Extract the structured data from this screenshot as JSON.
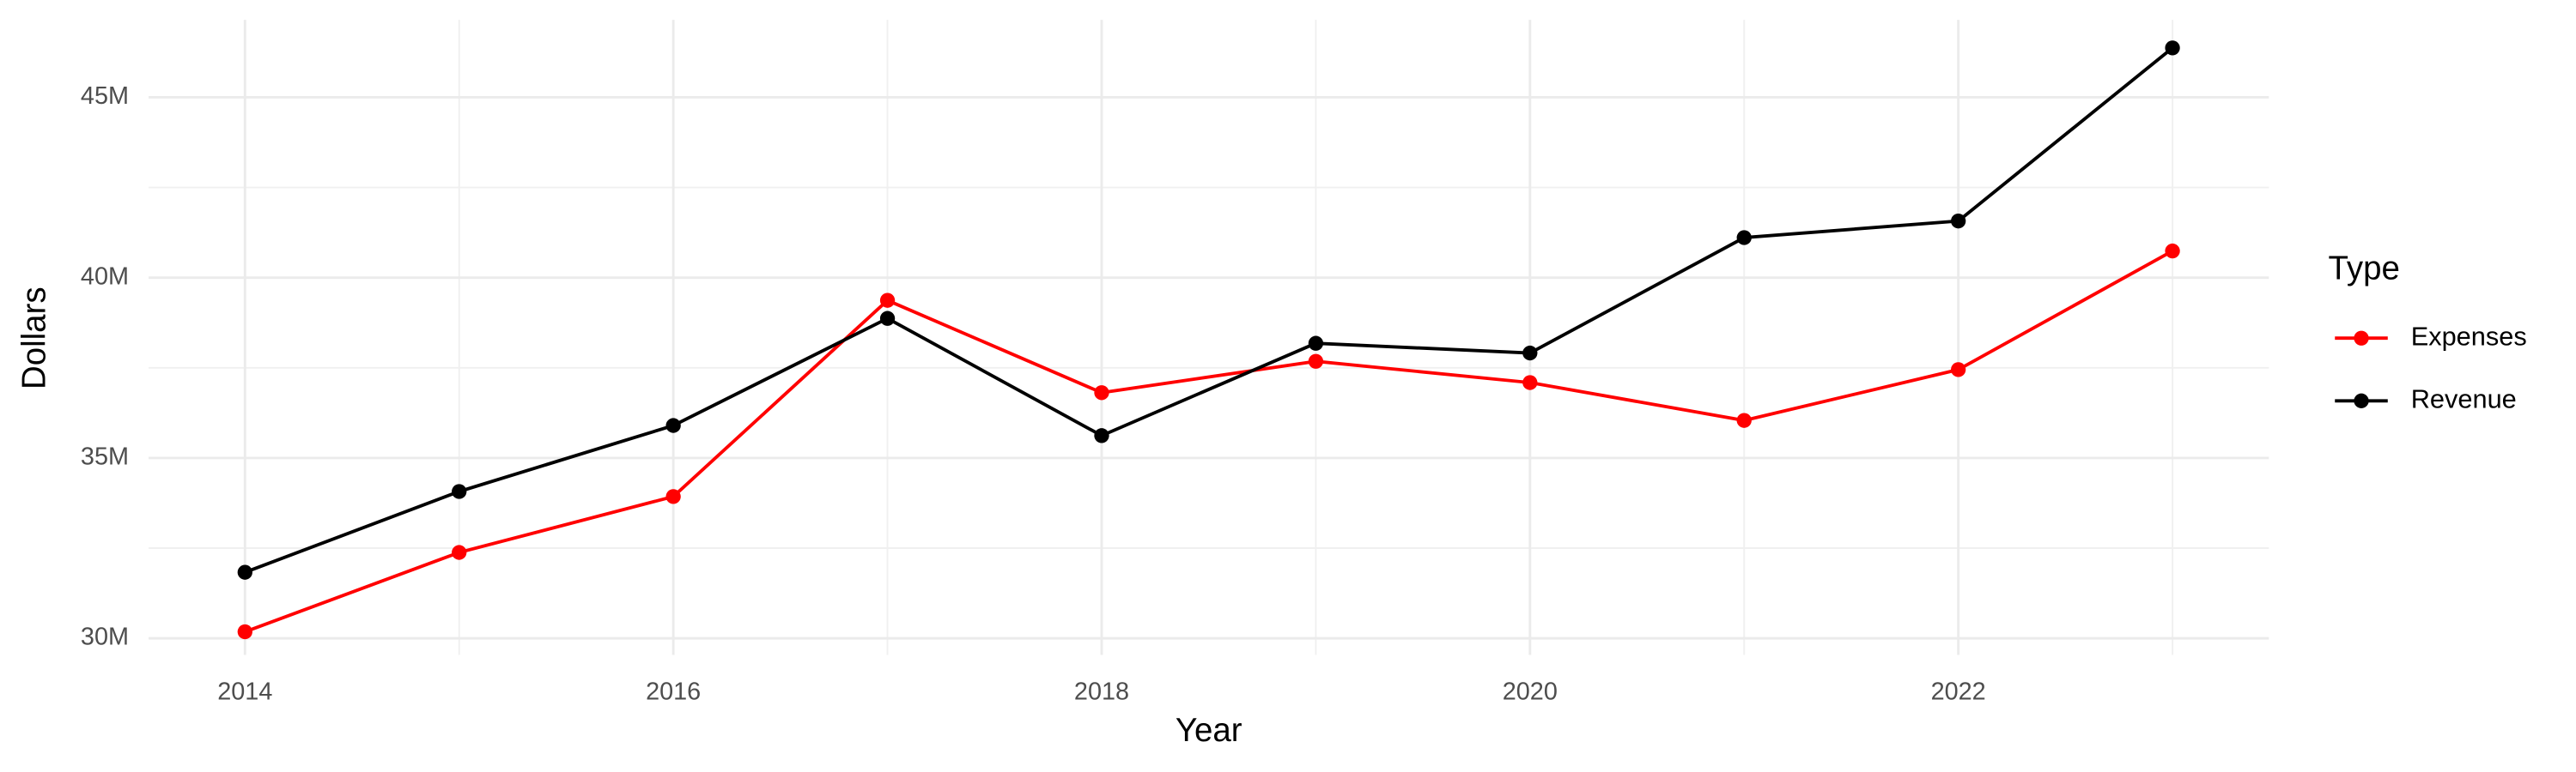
{
  "chart_data": {
    "type": "line",
    "x_label": "Year",
    "y_label": "Dollars",
    "legend_title": "Type",
    "legend_position": "right",
    "grid": true,
    "x": [
      2014,
      2015,
      2016,
      2017,
      2018,
      2019,
      2020,
      2021,
      2022,
      2023
    ],
    "series": [
      {
        "name": "Expenses",
        "color": "#ff0000",
        "values": [
          30180000,
          32380000,
          33930000,
          39370000,
          36810000,
          37680000,
          37090000,
          36040000,
          37450000,
          40740000
        ]
      },
      {
        "name": "Revenue",
        "color": "#000000",
        "values": [
          31830000,
          34070000,
          35900000,
          38870000,
          35620000,
          38180000,
          37910000,
          41110000,
          41570000,
          46370000
        ]
      }
    ],
    "xlim": [
      2013.55,
      2023.45
    ],
    "xticks": [
      2014,
      2016,
      2018,
      2020,
      2022
    ],
    "ylim": [
      29540000,
      47150000
    ],
    "yticks": [
      {
        "value": 30000000,
        "label": "30M"
      },
      {
        "value": 35000000,
        "label": "35M"
      },
      {
        "value": 40000000,
        "label": "40M"
      },
      {
        "value": 45000000,
        "label": "45M"
      }
    ]
  }
}
